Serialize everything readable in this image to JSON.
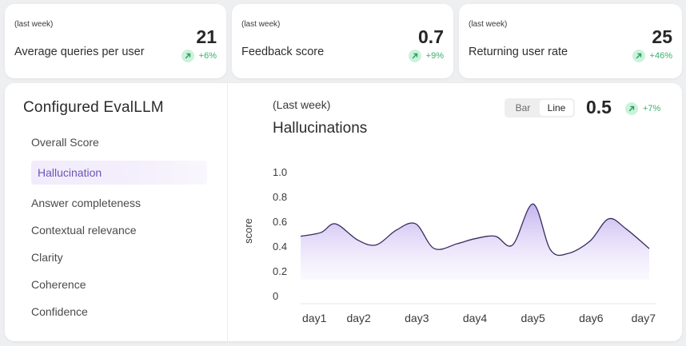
{
  "stats": [
    {
      "period": "(last week)",
      "label": "Average queries per user",
      "value": "21",
      "change": "+6%"
    },
    {
      "period": "(last week)",
      "label": "Feedback score",
      "value": "0.7",
      "change": "+9%"
    },
    {
      "period": "(last week)",
      "label": "Returning user rate",
      "value": "25",
      "change": "+46%"
    }
  ],
  "sidebar": {
    "title": "Configured EvalLLM",
    "items": [
      {
        "label": "Overall Score",
        "active": false
      },
      {
        "label": "Hallucination",
        "active": true
      },
      {
        "label": "Answer completeness",
        "active": false
      },
      {
        "label": "Contextual relevance",
        "active": false
      },
      {
        "label": "Clarity",
        "active": false
      },
      {
        "label": "Coherence",
        "active": false
      },
      {
        "label": "Confidence",
        "active": false
      }
    ]
  },
  "chart_panel": {
    "period": "(Last week)",
    "title": "Hallucinations",
    "toggle": {
      "bar_label": "Bar",
      "line_label": "Line",
      "selected": "Line"
    },
    "value": "0.5",
    "change": "+7%"
  },
  "colors": {
    "positive": "#3cae6f",
    "positive_bg": "#c9f3da",
    "line": "#3a2b5e",
    "area": "#b9a6ec",
    "active_item": "#6b55b8"
  },
  "chart_data": {
    "type": "area",
    "ylabel": "score",
    "xlabel": "",
    "ylim": [
      0,
      1.0
    ],
    "yticks": [
      "0",
      "0.2",
      "0.4",
      "0.6",
      "0.8",
      "1.0"
    ],
    "categories": [
      "day1",
      "day2",
      "day3",
      "day4",
      "day5",
      "day6",
      "day7"
    ],
    "x": [
      0,
      0.35,
      0.6,
      0.98,
      1.3,
      1.65,
      1.98,
      2.3,
      2.7,
      3.0,
      3.35,
      3.65,
      4.0,
      4.3,
      4.6,
      4.98,
      5.3,
      5.6,
      6.0
    ],
    "values": [
      0.48,
      0.51,
      0.58,
      0.45,
      0.41,
      0.53,
      0.58,
      0.38,
      0.42,
      0.46,
      0.48,
      0.41,
      0.74,
      0.37,
      0.34,
      0.44,
      0.62,
      0.54,
      0.38
    ]
  }
}
